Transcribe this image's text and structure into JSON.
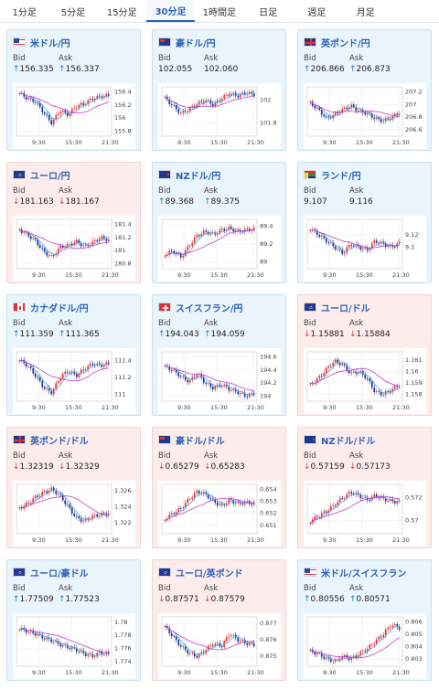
{
  "tabs": [
    {
      "label": "1分足",
      "active": false
    },
    {
      "label": "5分足",
      "active": false
    },
    {
      "label": "15分足",
      "active": false
    },
    {
      "label": "30分足",
      "active": true
    },
    {
      "label": "1時間足",
      "active": false
    },
    {
      "label": "日足",
      "active": false
    },
    {
      "label": "週足",
      "active": false
    },
    {
      "label": "月足",
      "active": false
    }
  ],
  "bid_label": "Bid",
  "ask_label": "Ask",
  "x_ticks": [
    "9:30",
    "15:30",
    "21:30"
  ],
  "colors": {
    "up_card": "#eaf4fc",
    "down_card": "#fdecec",
    "candle_up": "#e23b3b",
    "candle_down": "#1a3a9c",
    "ma_short": "#5aa9d6",
    "ma_long": "#c13ccf"
  },
  "cards": [
    {
      "pair": "米ドル/円",
      "flag": "us",
      "dir": "up",
      "bid": "156.335",
      "ask": "156.337",
      "y_ticks": [
        "156.4",
        "156.2",
        "156",
        "155.8"
      ],
      "ylim": [
        155.72,
        156.48
      ],
      "prices": [
        156.38,
        156.3,
        156.25,
        156.08,
        155.92,
        156.12,
        156.05,
        156.18,
        156.22,
        156.3,
        156.33,
        156.35
      ]
    },
    {
      "pair": "豪ドル/円",
      "flag": "au",
      "dir": "neutral",
      "bid": "102.055",
      "ask": "102.060",
      "y_ticks": [
        "102",
        "101.8"
      ],
      "ylim": [
        101.68,
        102.12
      ],
      "prices": [
        102.02,
        101.95,
        101.88,
        101.92,
        101.97,
        102.0,
        101.96,
        102.02,
        102.06,
        102.04,
        102.07,
        102.05
      ]
    },
    {
      "pair": "英ポンド/円",
      "flag": "uk",
      "dir": "up",
      "bid": "206.866",
      "ask": "206.873",
      "y_ticks": [
        "207.2",
        "207",
        "206.8",
        "206.6"
      ],
      "ylim": [
        206.5,
        207.28
      ],
      "prices": [
        207.02,
        206.92,
        206.78,
        206.84,
        206.92,
        206.98,
        206.9,
        206.86,
        206.78,
        206.74,
        206.8,
        206.87
      ]
    },
    {
      "pair": "ユーロ/円",
      "flag": "eu",
      "dir": "down",
      "bid": "181.163",
      "ask": "181.167",
      "y_ticks": [
        "181.4",
        "181.2",
        "181",
        "180.8"
      ],
      "ylim": [
        180.72,
        181.48
      ],
      "prices": [
        181.32,
        181.24,
        181.15,
        180.98,
        180.9,
        181.05,
        181.08,
        181.14,
        181.06,
        181.12,
        181.2,
        181.16
      ]
    },
    {
      "pair": "NZドル/円",
      "flag": "nz",
      "dir": "up",
      "bid": "89.368",
      "ask": "89.375",
      "y_ticks": [
        "89.4",
        "89.2",
        "89"
      ],
      "ylim": [
        88.92,
        89.48
      ],
      "prices": [
        89.08,
        89.12,
        89.05,
        89.18,
        89.3,
        89.34,
        89.31,
        89.36,
        89.38,
        89.34,
        89.36,
        89.37
      ]
    },
    {
      "pair": "ランド/円",
      "flag": "za",
      "dir": "neutral",
      "bid": "9.107",
      "ask": "9.116",
      "y_ticks": [
        "9.12",
        "9.1"
      ],
      "ylim": [
        9.065,
        9.145
      ],
      "prices": [
        9.13,
        9.12,
        9.11,
        9.1,
        9.09,
        9.105,
        9.1,
        9.095,
        9.11,
        9.105,
        9.1,
        9.107
      ]
    },
    {
      "pair": "カナダドル/円",
      "flag": "ca",
      "dir": "up",
      "bid": "111.359",
      "ask": "111.365",
      "y_ticks": [
        "111.4",
        "111.2",
        "111"
      ],
      "ylim": [
        110.92,
        111.5
      ],
      "prices": [
        111.4,
        111.34,
        111.22,
        111.08,
        111.02,
        111.2,
        111.28,
        111.22,
        111.3,
        111.36,
        111.34,
        111.36
      ]
    },
    {
      "pair": "スイスフラン/円",
      "flag": "ch",
      "dir": "up",
      "bid": "194.043",
      "ask": "194.059",
      "y_ticks": [
        "194.6",
        "194.4",
        "194.2",
        "194"
      ],
      "ylim": [
        193.92,
        194.68
      ],
      "prices": [
        194.45,
        194.4,
        194.3,
        194.22,
        194.35,
        194.2,
        194.12,
        194.18,
        194.1,
        194.06,
        194.0,
        194.04
      ]
    },
    {
      "pair": "ユーロ/ドル",
      "flag": "eu",
      "dir": "down",
      "bid": "1.15881",
      "ask": "1.15884",
      "y_ticks": [
        "1.161",
        "1.16",
        "1.159",
        "1.158"
      ],
      "ylim": [
        1.1574,
        1.1617
      ],
      "prices": [
        1.1588,
        1.1594,
        1.1602,
        1.1609,
        1.1606,
        1.1598,
        1.16,
        1.1594,
        1.1582,
        1.158,
        1.1584,
        1.1588
      ]
    },
    {
      "pair": "英ポンド/ドル",
      "flag": "uk",
      "dir": "down",
      "bid": "1.32319",
      "ask": "1.32329",
      "y_ticks": [
        "1.326",
        "1.324",
        "1.322"
      ],
      "ylim": [
        1.3206,
        1.3268
      ],
      "prices": [
        1.3238,
        1.3244,
        1.3252,
        1.3258,
        1.3262,
        1.3254,
        1.324,
        1.3226,
        1.3222,
        1.3228,
        1.323,
        1.3232
      ]
    },
    {
      "pair": "豪ドル/ドル",
      "flag": "au",
      "dir": "down",
      "bid": "0.65279",
      "ask": "0.65283",
      "y_ticks": [
        "0.654",
        "0.653",
        "0.652",
        "0.651"
      ],
      "ylim": [
        0.6503,
        0.6544
      ],
      "prices": [
        0.6515,
        0.652,
        0.6524,
        0.6532,
        0.6538,
        0.6536,
        0.653,
        0.6526,
        0.6531,
        0.6528,
        0.6529,
        0.6528
      ]
    },
    {
      "pair": "NZドル/ドル",
      "flag": "nz",
      "dir": "down",
      "bid": "0.57159",
      "ask": "0.57173",
      "y_ticks": [
        "0.572",
        "0.57"
      ],
      "ylim": [
        0.5688,
        0.5732
      ],
      "prices": [
        0.5699,
        0.5704,
        0.5708,
        0.5714,
        0.572,
        0.5725,
        0.5722,
        0.5718,
        0.5722,
        0.5719,
        0.5717,
        0.5716
      ]
    },
    {
      "pair": "ユーロ/豪ドル",
      "flag": "eu",
      "dir": "up",
      "bid": "1.77509",
      "ask": "1.77523",
      "y_ticks": [
        "1.78",
        "1.778",
        "1.776",
        "1.774"
      ],
      "ylim": [
        1.7733,
        1.7808
      ],
      "prices": [
        1.779,
        1.7786,
        1.7782,
        1.7776,
        1.7772,
        1.7766,
        1.7762,
        1.7758,
        1.7752,
        1.7748,
        1.7754,
        1.7751
      ]
    },
    {
      "pair": "ユーロ/英ポンド",
      "flag": "eu",
      "dir": "down",
      "bid": "0.87571",
      "ask": "0.87579",
      "y_ticks": [
        "0.877",
        "0.876",
        "0.875"
      ],
      "ylim": [
        0.8744,
        0.8774
      ],
      "prices": [
        0.8768,
        0.8762,
        0.8756,
        0.8752,
        0.875,
        0.8754,
        0.8758,
        0.8756,
        0.8764,
        0.876,
        0.8758,
        0.8757
      ]
    },
    {
      "pair": "米ドル/スイスフラン",
      "flag": "us",
      "dir": "up",
      "bid": "0.80556",
      "ask": "0.80571",
      "y_ticks": [
        "0.806",
        "0.805",
        "0.804",
        "0.803"
      ],
      "ylim": [
        0.8024,
        0.8064
      ],
      "prices": [
        0.8036,
        0.8034,
        0.803,
        0.8028,
        0.8032,
        0.803,
        0.8034,
        0.8038,
        0.8044,
        0.805,
        0.8058,
        0.8055
      ]
    }
  ]
}
